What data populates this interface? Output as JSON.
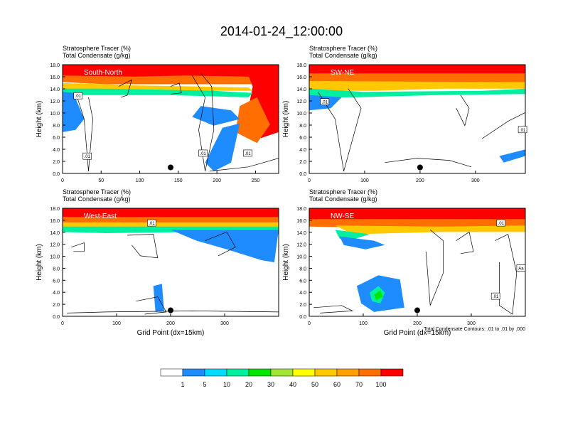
{
  "title": "2014-01-24_12:00:00",
  "scale": {
    "labels": [
      "1",
      "5",
      "10",
      "20",
      "30",
      "40",
      "50",
      "60",
      "70",
      "100"
    ],
    "colors": [
      "#ffffff",
      "#1e8cff",
      "#00dcff",
      "#00f0a0",
      "#00e600",
      "#a0e632",
      "#ffff00",
      "#ffc800",
      "#ffa000",
      "#ff6e00",
      "#ff0000"
    ]
  },
  "chart_data": [
    {
      "type": "contour",
      "panel_label": "South-North",
      "title_line1": "Stratosphere Tracer   (%)",
      "title_line2": "Total Condensate   (g/kg)",
      "ylabel": "Height (km)",
      "xlabel": "",
      "x_range": [
        0,
        280
      ],
      "x_ticks": [
        "0",
        "50",
        "100",
        "150",
        "200",
        "250"
      ],
      "y_range": [
        0,
        18
      ],
      "y_ticks": [
        "0.0",
        "2.0",
        "4.0",
        "6.0",
        "8.0",
        "10.0",
        "12.0",
        "14.0",
        "16.0",
        "18.0"
      ],
      "marker": {
        "x": 140,
        "y": 1.0
      },
      "contour_labels": [
        {
          "text": ".01",
          "x": 20,
          "y": 12.8
        },
        {
          "text": ".01",
          "x": 32,
          "y": 2.8
        },
        {
          "text": ".01",
          "x": 182,
          "y": 3.3
        },
        {
          "text": ".01",
          "x": 240,
          "y": 3.3
        }
      ]
    },
    {
      "type": "contour",
      "panel_label": "SW-NE",
      "title_line1": "Stratosphere Tracer   (%)",
      "title_line2": "Total Condensate   (g/kg)",
      "ylabel": "Height (km)",
      "xlabel": "",
      "x_range": [
        0,
        390
      ],
      "x_ticks": [
        "0",
        "100",
        "200",
        "300"
      ],
      "y_range": [
        0,
        18
      ],
      "y_ticks": [
        "0.0",
        "2.0",
        "4.0",
        "6.0",
        "8.0",
        "10.0",
        "12.0",
        "14.0",
        "16.0",
        "18.0"
      ],
      "marker": {
        "x": 200,
        "y": 1.0
      },
      "contour_labels": [
        {
          "text": ".01",
          "x": 28,
          "y": 11.8
        },
        {
          "text": ".01",
          "x": 385,
          "y": 7.2
        }
      ]
    },
    {
      "type": "contour",
      "panel_label": "West-East",
      "title_line1": "Stratosphere Tracer   (%)",
      "title_line2": "Total Condensate   (g/kg)",
      "ylabel": "Height (km)",
      "xlabel": "Grid Point (dx=15km)",
      "x_range": [
        0,
        400
      ],
      "x_ticks": [
        "0",
        "100",
        "200",
        "300"
      ],
      "y_range": [
        0,
        18
      ],
      "y_ticks": [
        "0.0",
        "2.0",
        "4.0",
        "6.0",
        "8.0",
        "10.0",
        "12.0",
        "14.0",
        "16.0",
        "18.0"
      ],
      "marker": {
        "x": 200,
        "y": 1.0
      },
      "contour_labels": [
        {
          "text": ".01",
          "x": 165,
          "y": 15.5
        }
      ]
    },
    {
      "type": "contour",
      "panel_label": "NW-SE",
      "title_line1": "Stratosphere Tracer   (%)",
      "title_line2": "Total Condensate   (g/kg)",
      "ylabel": "Height (km)",
      "xlabel": "Grid Point (dx=15km)",
      "note": "Total Condensate Contours: .01 to .01 by .000",
      "x_range": [
        0,
        400
      ],
      "x_ticks": [
        "0",
        "100",
        "200",
        "300"
      ],
      "y_range": [
        0,
        18
      ],
      "y_ticks": [
        "0.0",
        "2.0",
        "4.0",
        "6.0",
        "8.0",
        "10.0",
        "12.0",
        "14.0",
        "16.0",
        "18.0"
      ],
      "marker": {
        "x": 200,
        "y": 1.0
      },
      "contour_labels": [
        {
          "text": ".01",
          "x": 355,
          "y": 15.5
        },
        {
          "text": "Aa",
          "x": 392,
          "y": 8.0
        },
        {
          "text": ".01",
          "x": 345,
          "y": 3.3
        }
      ]
    }
  ]
}
